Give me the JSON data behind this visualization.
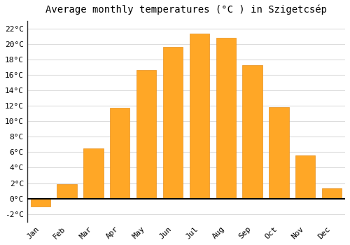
{
  "title": "Average monthly temperatures (°C ) in Szigetcsép",
  "months": [
    "Jan",
    "Feb",
    "Mar",
    "Apr",
    "May",
    "Jun",
    "Jul",
    "Aug",
    "Sep",
    "Oct",
    "Nov",
    "Dec"
  ],
  "values": [
    -1.0,
    1.9,
    6.5,
    11.7,
    16.6,
    19.6,
    21.3,
    20.8,
    17.3,
    11.8,
    5.6,
    1.3
  ],
  "bar_color": "#FFA726",
  "bar_edge_color": "#E69020",
  "background_color": "#FFFFFF",
  "grid_color": "#DDDDDD",
  "ylim": [
    -3,
    23
  ],
  "yticks": [
    0,
    2,
    4,
    6,
    8,
    10,
    12,
    14,
    16,
    18,
    20,
    22
  ],
  "title_fontsize": 10,
  "tick_fontsize": 8,
  "bar_width": 0.75
}
